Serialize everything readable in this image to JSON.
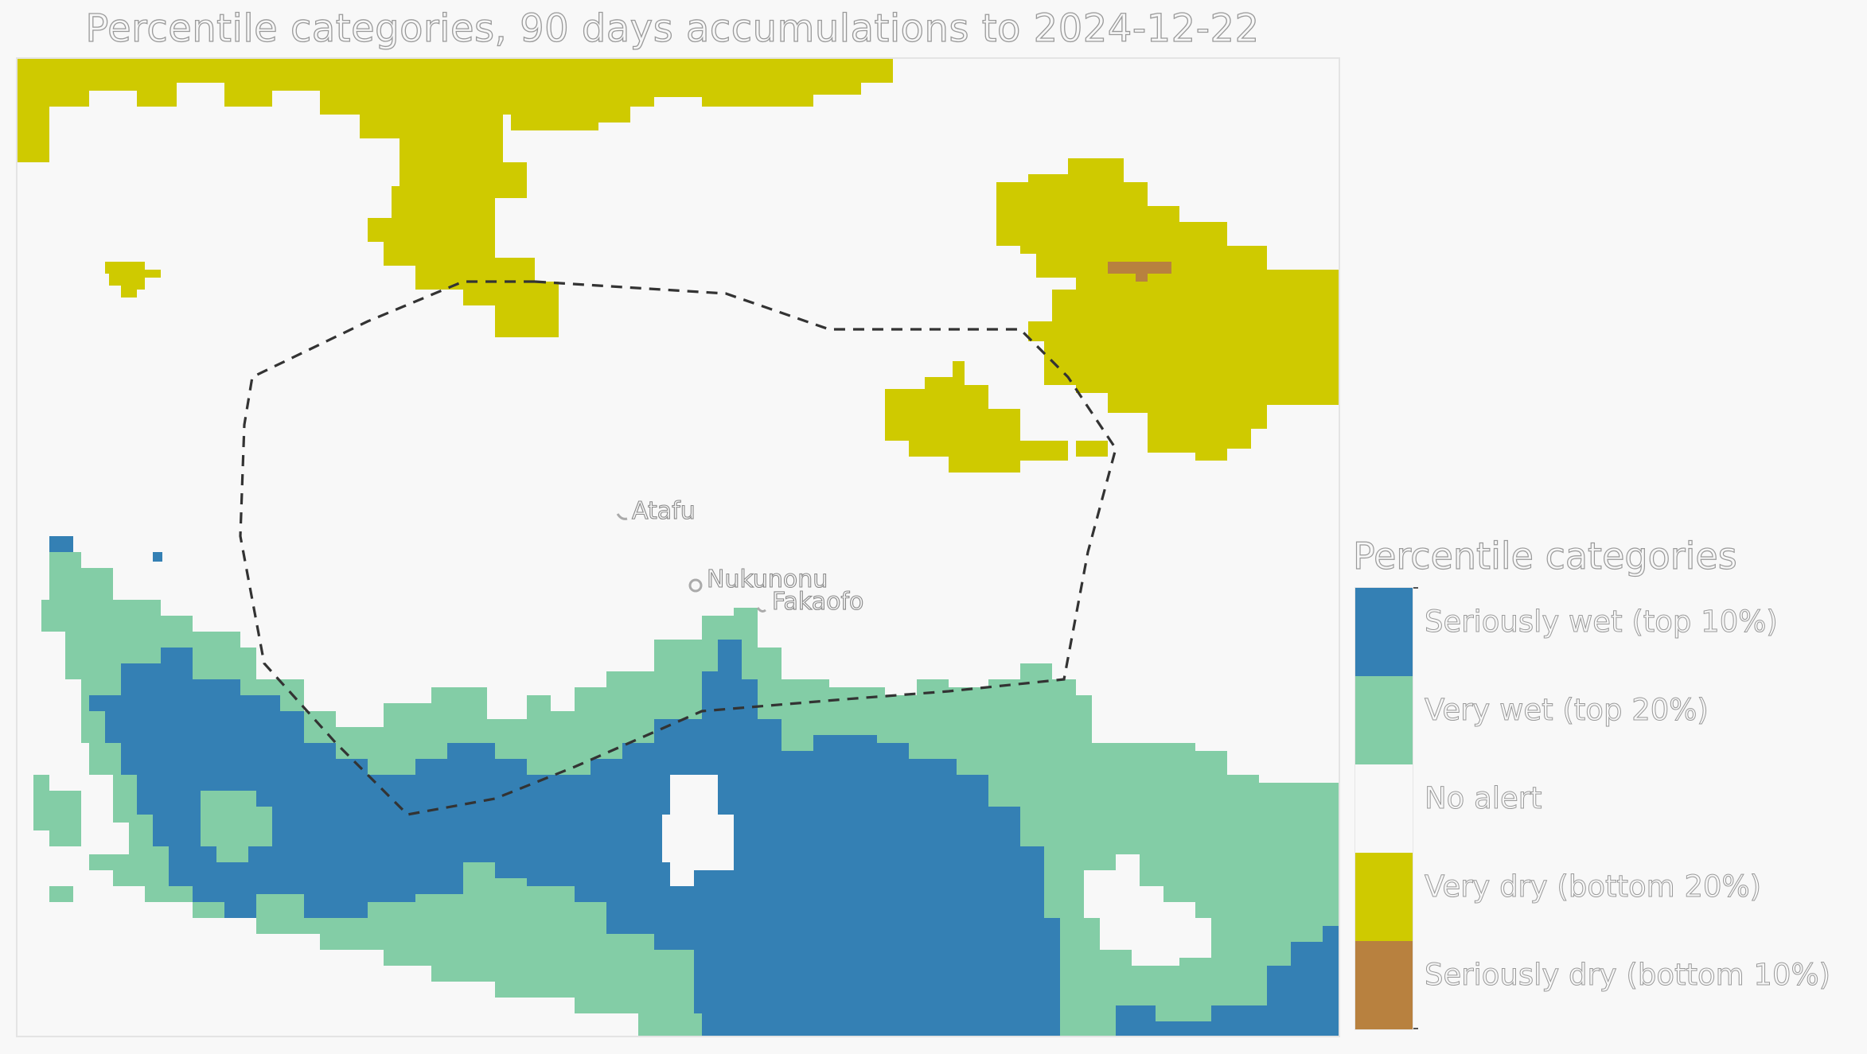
{
  "title": "Percentile categories, 90 days accumulations to 2024-12-22",
  "legend": {
    "title": "Percentile categories",
    "items": [
      {
        "label": "Seriously wet (top 10%)",
        "color": "#3480b4"
      },
      {
        "label": "Very wet (top 20%)",
        "color": "#83cda6"
      },
      {
        "label": "No alert",
        "color": "#f8f8f8"
      },
      {
        "label": "Very dry (bottom 20%)",
        "color": "#cfca00"
      },
      {
        "label": "Seriously dry (bottom 10%)",
        "color": "#b8813f"
      }
    ]
  },
  "places": [
    {
      "name": "Atafu"
    },
    {
      "name": "Nukunonu"
    },
    {
      "name": "Fakaofo"
    }
  ],
  "boundary": {
    "style": "dashed",
    "color": "#333333"
  }
}
